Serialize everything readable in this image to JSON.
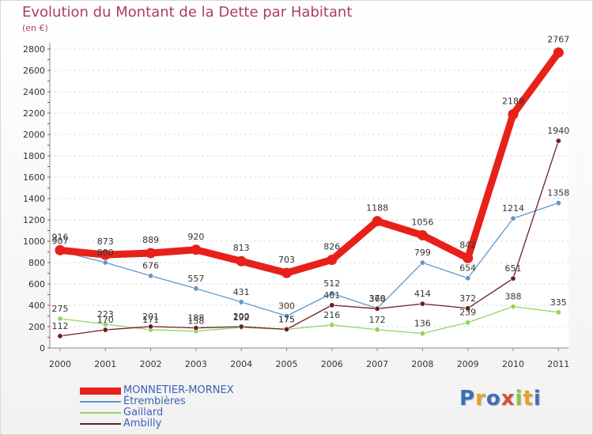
{
  "header": {
    "title": "Evolution du Montant de la Dette par Habitant",
    "unit": "(en €)"
  },
  "logo": {
    "text": "Proxiti",
    "colors": [
      "#3d6fb6",
      "#e5a12a",
      "#3d6fb6",
      "#d94b3c",
      "#8bc24a",
      "#e5a12a",
      "#3d6fb6"
    ]
  },
  "chart_data": {
    "type": "line",
    "title": "Evolution du Montant de la Dette par Habitant",
    "ylabel": "(en €)",
    "xlabel": "",
    "x": [
      "2000",
      "2001",
      "2002",
      "2003",
      "2004",
      "2005",
      "2006",
      "2007",
      "2008",
      "2009",
      "2010",
      "2011"
    ],
    "ylim": [
      0,
      2800
    ],
    "y_ticks": [
      "0",
      "200",
      "400",
      "600",
      "800",
      "1000",
      "1200",
      "1400",
      "1600",
      "1800",
      "2000",
      "2200",
      "2400",
      "2600",
      "2800"
    ],
    "grid": "horizontal dashed",
    "legend_position": "bottom-left",
    "series": [
      {
        "name": "MONNETIER-MORNEX",
        "color": "#e8201a",
        "values": [
          916,
          873,
          889,
          920,
          813,
          703,
          826,
          1188,
          1056,
          842,
          2189,
          2767
        ],
        "labels": [
          "916",
          "873",
          "889",
          "920",
          "813",
          "703",
          "826",
          "1188",
          "1056",
          "842",
          "2189",
          "2767"
        ]
      },
      {
        "name": "Étrembières",
        "color": "#5f97cf",
        "values": [
          907,
          800,
          676,
          557,
          431,
          300,
          512,
          370,
          799,
          654,
          1214,
          1358
        ],
        "labels": [
          "907",
          "800",
          "676",
          "557",
          "431",
          "300",
          "512",
          "370",
          "799",
          "654",
          "1214",
          "1358"
        ]
      },
      {
        "name": "Gaillard",
        "color": "#93d35f",
        "values": [
          275,
          223,
          171,
          158,
          192,
          175,
          216,
          172,
          136,
          239,
          388,
          335
        ],
        "labels": [
          "275",
          "223",
          "171",
          "158",
          "192",
          "175",
          "216",
          "172",
          "136",
          "239",
          "388",
          "335"
        ]
      },
      {
        "name": "Ambilly",
        "color": "#6b1f24",
        "values": [
          112,
          170,
          201,
          188,
          200,
          175,
          401,
          368,
          414,
          372,
          651,
          1940
        ],
        "labels": [
          "112",
          "170",
          "201",
          "188",
          "200",
          "175",
          "401",
          "368",
          "414",
          "372",
          "651",
          "1940"
        ]
      }
    ]
  },
  "legend": {
    "items": [
      "MONNETIER-MORNEX",
      "Étrembières",
      "Gaillard",
      "Ambilly"
    ]
  }
}
